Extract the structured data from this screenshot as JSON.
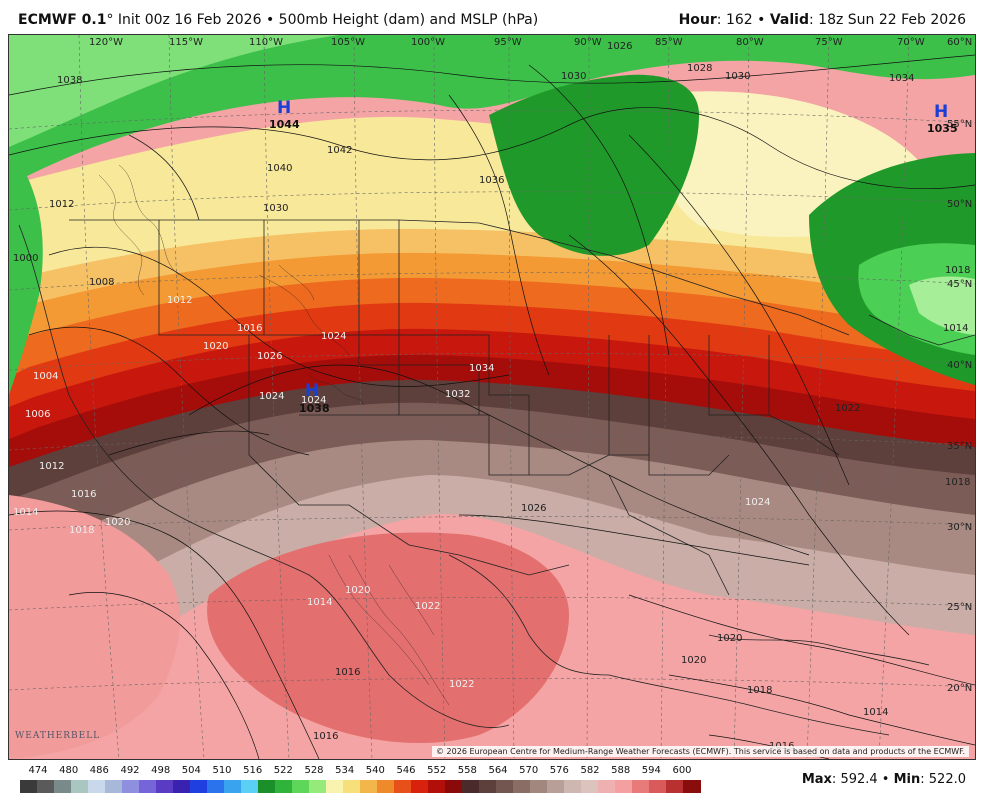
{
  "header": {
    "model": "ECMWF 0.1",
    "degree": "°",
    "init": "Init 00z 16 Feb 2026",
    "bullet": "•",
    "field": "500mb Height (dam) and MSLP (hPa)",
    "hour_label": "Hour",
    "hour_value": "162",
    "valid_label": "Valid",
    "valid_value": "18z Sun 22 Feb 2026"
  },
  "map": {
    "lon_labels": [
      "120°W",
      "115°W",
      "110°W",
      "105°W",
      "100°W",
      "95°W",
      "90°W",
      "85°W",
      "80°W",
      "75°W",
      "70°W",
      "60°N"
    ],
    "lat_labels": [
      "55°N",
      "50°N",
      "45°N",
      "40°N",
      "35°N",
      "30°N",
      "25°N",
      "20°N"
    ],
    "pressure_centers": [
      {
        "symbol": "H",
        "value": "1044",
        "color": "#1a3fd6"
      },
      {
        "symbol": "H",
        "value": "1038",
        "color": "#1a3fd6"
      },
      {
        "symbol": "H",
        "value": "1035",
        "color": "#1a3fd6"
      }
    ],
    "isobar_labels": [
      "1038",
      "1026",
      "1028",
      "1030",
      "1030",
      "1034",
      "1042",
      "1040",
      "1036",
      "1030",
      "1012",
      "1018",
      "1000",
      "1008",
      "1012",
      "1024",
      "1016",
      "1020",
      "1026",
      "1024",
      "1024",
      "1034",
      "1032",
      "1004",
      "1006",
      "1012",
      "1014",
      "1016",
      "1018",
      "1020",
      "1026",
      "1024",
      "1022",
      "1014",
      "1018",
      "1014",
      "1020",
      "1022",
      "1016",
      "1020",
      "1020",
      "1018",
      "1016",
      "1014",
      "1016",
      "1022"
    ],
    "copyright": "© 2026 European Centre for Medium-Range Weather Forecasts (ECMWF). This service is based on data and products of the ECMWF.",
    "logo_text": "WEATHERBELL"
  },
  "colorbar": {
    "labels": [
      "474",
      "480",
      "486",
      "492",
      "498",
      "504",
      "510",
      "516",
      "522",
      "528",
      "534",
      "540",
      "546",
      "552",
      "558",
      "564",
      "570",
      "576",
      "582",
      "588",
      "594",
      "600"
    ],
    "colors": [
      "#3a3a3a",
      "#5a5a5a",
      "#7a8a8a",
      "#a9c6c0",
      "#c9d8ea",
      "#a8b8d8",
      "#8f8fe0",
      "#7565d9",
      "#5a3bc4",
      "#3a22b0",
      "#1f3fe0",
      "#2a73ec",
      "#3aa3f0",
      "#5bd0f5",
      "#1a8f2a",
      "#2fb33a",
      "#5dd65a",
      "#96ea7a",
      "#f8f4b0",
      "#f7e07a",
      "#f3b64a",
      "#ef8a2a",
      "#e8501a",
      "#d8220e",
      "#b20f0a",
      "#8a0a0a",
      "#4a2a2a",
      "#5d3f3b",
      "#735650",
      "#8a6e66",
      "#a1887f",
      "#b8a098",
      "#cdb7b0",
      "#ddc3be",
      "#eeb0b0",
      "#f4a0a0",
      "#e87a7a",
      "#d85a5a",
      "#b83030",
      "#8a0d0d"
    ],
    "max_label": "Max",
    "max_value": "592.4",
    "min_label": "Min",
    "min_value": "522.0"
  }
}
